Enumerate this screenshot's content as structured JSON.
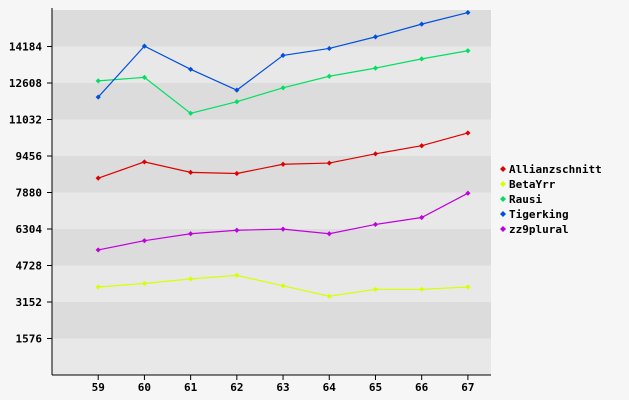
{
  "chart_data": {
    "type": "line",
    "title": "",
    "xlabel": "",
    "ylabel": "",
    "x": [
      "59",
      "60",
      "61",
      "62",
      "63",
      "64",
      "65",
      "66",
      "67"
    ],
    "yticks": [
      "1576",
      "3152",
      "4728",
      "6304",
      "7880",
      "9456",
      "11032",
      "12608",
      "14184"
    ],
    "ylim": [
      0,
      15760
    ],
    "grid": "alternating horizontal bands",
    "legend": "right",
    "series": [
      {
        "name": "Allianzschnitt",
        "color": "#e00000",
        "values": [
          8500,
          9200,
          8750,
          8700,
          9100,
          9150,
          9550,
          9900,
          10450
        ]
      },
      {
        "name": "BetaYrr",
        "color": "#d8ff00",
        "values": [
          3800,
          3950,
          4150,
          4300,
          3850,
          3400,
          3700,
          3700,
          3800
        ]
      },
      {
        "name": "Rausi",
        "color": "#00e060",
        "values": [
          12700,
          12850,
          11300,
          11800,
          12400,
          12900,
          13250,
          13650,
          14000
        ]
      },
      {
        "name": "Tigerking",
        "color": "#0050e0",
        "values": [
          12000,
          14200,
          13200,
          12300,
          13800,
          14100,
          14600,
          15150,
          15650
        ]
      },
      {
        "name": "zz9plural",
        "color": "#c000e0",
        "values": [
          5400,
          5800,
          6100,
          6250,
          6300,
          6100,
          6500,
          6800,
          7850
        ]
      }
    ]
  }
}
